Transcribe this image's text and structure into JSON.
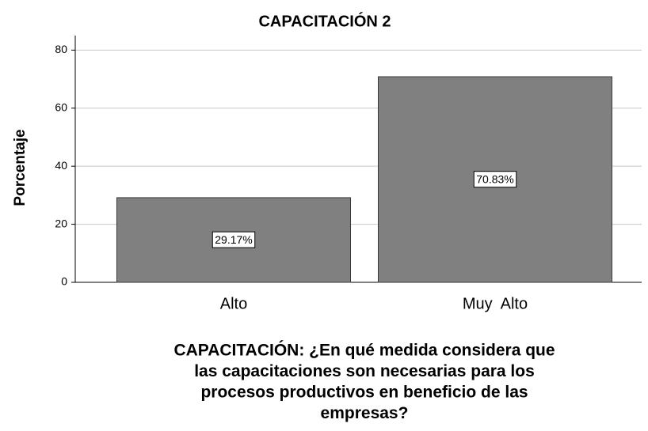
{
  "chart_data": {
    "type": "bar",
    "title": "CAPACITACIÓN 2",
    "y_label": "Porcentaje",
    "x_label": [
      "CAPACITACIÓN: ¿En qué medida considera que",
      "las capacitaciones son necesarias para los",
      "procesos productivos en beneficio de las",
      "empresas?"
    ],
    "categories": [
      "Alto",
      "Muy  Alto"
    ],
    "values": [
      29.17,
      70.83
    ],
    "value_labels": [
      "29.17%",
      "70.83%"
    ],
    "color": "#808080",
    "ylim": [
      0,
      85
    ],
    "yticks": [
      0,
      20,
      40,
      60,
      80
    ],
    "grid": true
  }
}
